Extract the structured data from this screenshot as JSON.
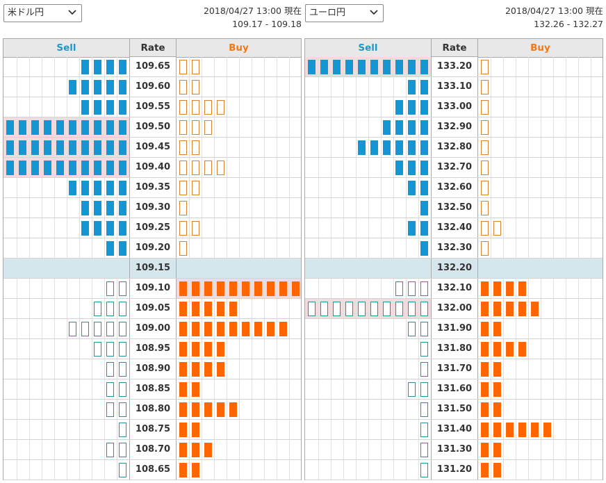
{
  "panels": [
    {
      "pair": "米ドル円",
      "timestamp": "2018/04/27 13:00 現在",
      "quote": "109.17 - 109.18",
      "headers": {
        "sell": "Sell",
        "rate": "Rate",
        "buy": "Buy"
      },
      "current_rate": "109.15",
      "rows": [
        {
          "rate": "109.65",
          "sell_filled": 4,
          "sell_outline": 0,
          "buy_filled": 0,
          "buy_outline": 2,
          "hl_sell": false,
          "hl_buy": false
        },
        {
          "rate": "109.60",
          "sell_filled": 5,
          "sell_outline": 0,
          "buy_filled": 0,
          "buy_outline": 2,
          "hl_sell": false,
          "hl_buy": false
        },
        {
          "rate": "109.55",
          "sell_filled": 4,
          "sell_outline": 0,
          "buy_filled": 0,
          "buy_outline": 4,
          "hl_sell": false,
          "hl_buy": false
        },
        {
          "rate": "109.50",
          "sell_filled": 10,
          "sell_outline": 0,
          "buy_filled": 0,
          "buy_outline": 3,
          "hl_sell": true,
          "hl_buy": false
        },
        {
          "rate": "109.45",
          "sell_filled": 10,
          "sell_outline": 0,
          "buy_filled": 0,
          "buy_outline": 2,
          "hl_sell": true,
          "hl_buy": false
        },
        {
          "rate": "109.40",
          "sell_filled": 10,
          "sell_outline": 0,
          "buy_filled": 0,
          "buy_outline": 4,
          "hl_sell": true,
          "hl_buy": false
        },
        {
          "rate": "109.35",
          "sell_filled": 5,
          "sell_outline": 0,
          "buy_filled": 0,
          "buy_outline": 2,
          "hl_sell": false,
          "hl_buy": false
        },
        {
          "rate": "109.30",
          "sell_filled": 4,
          "sell_outline": 0,
          "buy_filled": 0,
          "buy_outline": 1,
          "hl_sell": false,
          "hl_buy": false
        },
        {
          "rate": "109.25",
          "sell_filled": 4,
          "sell_outline": 0,
          "buy_filled": 0,
          "buy_outline": 2,
          "hl_sell": false,
          "hl_buy": false
        },
        {
          "rate": "109.20",
          "sell_filled": 2,
          "sell_outline": 0,
          "buy_filled": 0,
          "buy_outline": 1,
          "hl_sell": false,
          "hl_buy": false
        },
        {
          "rate": "109.15",
          "sell_filled": 0,
          "sell_outline": 0,
          "buy_filled": 0,
          "buy_outline": 0,
          "hl_sell": false,
          "hl_buy": false
        },
        {
          "rate": "109.10",
          "sell_filled": 0,
          "sell_outline": 2,
          "buy_filled": 10,
          "buy_outline": 0,
          "hl_sell": false,
          "hl_buy": true
        },
        {
          "rate": "109.05",
          "sell_filled": 0,
          "sell_outline": 3,
          "buy_filled": 5,
          "buy_outline": 0,
          "hl_sell": false,
          "hl_buy": false
        },
        {
          "rate": "109.00",
          "sell_filled": 0,
          "sell_outline": 5,
          "buy_filled": 9,
          "buy_outline": 0,
          "hl_sell": false,
          "hl_buy": false
        },
        {
          "rate": "108.95",
          "sell_filled": 0,
          "sell_outline": 3,
          "buy_filled": 4,
          "buy_outline": 0,
          "hl_sell": false,
          "hl_buy": false
        },
        {
          "rate": "108.90",
          "sell_filled": 0,
          "sell_outline": 2,
          "buy_filled": 4,
          "buy_outline": 0,
          "hl_sell": false,
          "hl_buy": false
        },
        {
          "rate": "108.85",
          "sell_filled": 0,
          "sell_outline": 2,
          "buy_filled": 2,
          "buy_outline": 0,
          "hl_sell": false,
          "hl_buy": false
        },
        {
          "rate": "108.80",
          "sell_filled": 0,
          "sell_outline": 2,
          "buy_filled": 5,
          "buy_outline": 0,
          "hl_sell": false,
          "hl_buy": false
        },
        {
          "rate": "108.75",
          "sell_filled": 0,
          "sell_outline": 1,
          "buy_filled": 2,
          "buy_outline": 0,
          "hl_sell": false,
          "hl_buy": false
        },
        {
          "rate": "108.70",
          "sell_filled": 0,
          "sell_outline": 2,
          "buy_filled": 3,
          "buy_outline": 0,
          "hl_sell": false,
          "hl_buy": false
        },
        {
          "rate": "108.65",
          "sell_filled": 0,
          "sell_outline": 1,
          "buy_filled": 2,
          "buy_outline": 0,
          "hl_sell": false,
          "hl_buy": false
        }
      ]
    },
    {
      "pair": "ユーロ円",
      "timestamp": "2018/04/27 13:00 現在",
      "quote": "132.26 - 132.27",
      "headers": {
        "sell": "Sell",
        "rate": "Rate",
        "buy": "Buy"
      },
      "current_rate": "132.20",
      "rows": [
        {
          "rate": "133.20",
          "sell_filled": 10,
          "sell_outline": 0,
          "buy_filled": 0,
          "buy_outline": 1,
          "hl_sell": true,
          "hl_buy": false
        },
        {
          "rate": "133.10",
          "sell_filled": 2,
          "sell_outline": 0,
          "buy_filled": 0,
          "buy_outline": 1,
          "hl_sell": false,
          "hl_buy": false
        },
        {
          "rate": "133.00",
          "sell_filled": 3,
          "sell_outline": 0,
          "buy_filled": 0,
          "buy_outline": 1,
          "hl_sell": false,
          "hl_buy": false
        },
        {
          "rate": "132.90",
          "sell_filled": 4,
          "sell_outline": 0,
          "buy_filled": 0,
          "buy_outline": 1,
          "hl_sell": false,
          "hl_buy": false
        },
        {
          "rate": "132.80",
          "sell_filled": 6,
          "sell_outline": 0,
          "buy_filled": 0,
          "buy_outline": 1,
          "hl_sell": false,
          "hl_buy": false
        },
        {
          "rate": "132.70",
          "sell_filled": 3,
          "sell_outline": 0,
          "buy_filled": 0,
          "buy_outline": 1,
          "hl_sell": false,
          "hl_buy": false
        },
        {
          "rate": "132.60",
          "sell_filled": 2,
          "sell_outline": 0,
          "buy_filled": 0,
          "buy_outline": 1,
          "hl_sell": false,
          "hl_buy": false
        },
        {
          "rate": "132.50",
          "sell_filled": 1,
          "sell_outline": 0,
          "buy_filled": 0,
          "buy_outline": 1,
          "hl_sell": false,
          "hl_buy": false
        },
        {
          "rate": "132.40",
          "sell_filled": 2,
          "sell_outline": 0,
          "buy_filled": 0,
          "buy_outline": 2,
          "hl_sell": false,
          "hl_buy": false
        },
        {
          "rate": "132.30",
          "sell_filled": 1,
          "sell_outline": 0,
          "buy_filled": 0,
          "buy_outline": 1,
          "hl_sell": false,
          "hl_buy": false
        },
        {
          "rate": "132.20",
          "sell_filled": 0,
          "sell_outline": 0,
          "buy_filled": 0,
          "buy_outline": 0,
          "hl_sell": false,
          "hl_buy": false
        },
        {
          "rate": "132.10",
          "sell_filled": 0,
          "sell_outline": 3,
          "buy_filled": 4,
          "buy_outline": 0,
          "hl_sell": false,
          "hl_buy": false
        },
        {
          "rate": "132.00",
          "sell_filled": 0,
          "sell_outline": 10,
          "buy_filled": 5,
          "buy_outline": 0,
          "hl_sell": true,
          "hl_buy": false
        },
        {
          "rate": "131.90",
          "sell_filled": 0,
          "sell_outline": 2,
          "buy_filled": 2,
          "buy_outline": 0,
          "hl_sell": false,
          "hl_buy": false
        },
        {
          "rate": "131.80",
          "sell_filled": 0,
          "sell_outline": 1,
          "buy_filled": 4,
          "buy_outline": 0,
          "hl_sell": false,
          "hl_buy": false
        },
        {
          "rate": "131.70",
          "sell_filled": 0,
          "sell_outline": 1,
          "buy_filled": 2,
          "buy_outline": 0,
          "hl_sell": false,
          "hl_buy": false
        },
        {
          "rate": "131.60",
          "sell_filled": 0,
          "sell_outline": 2,
          "buy_filled": 2,
          "buy_outline": 0,
          "hl_sell": false,
          "hl_buy": false
        },
        {
          "rate": "131.50",
          "sell_filled": 0,
          "sell_outline": 1,
          "buy_filled": 2,
          "buy_outline": 0,
          "hl_sell": false,
          "hl_buy": false
        },
        {
          "rate": "131.40",
          "sell_filled": 0,
          "sell_outline": 1,
          "buy_filled": 6,
          "buy_outline": 0,
          "hl_sell": false,
          "hl_buy": false
        },
        {
          "rate": "131.30",
          "sell_filled": 0,
          "sell_outline": 1,
          "buy_filled": 2,
          "buy_outline": 0,
          "hl_sell": false,
          "hl_buy": false
        },
        {
          "rate": "131.20",
          "sell_filled": 0,
          "sell_outline": 1,
          "buy_filled": 2,
          "buy_outline": 0,
          "hl_sell": false,
          "hl_buy": false
        }
      ]
    }
  ],
  "colors": {
    "sell_text": "#1d98c7",
    "buy_text": "#f07a1a",
    "sell_block": "#1396d2",
    "buy_block": "#ff6600",
    "current_row": "#d5e6ed",
    "highlight": "#f4d9dd"
  }
}
